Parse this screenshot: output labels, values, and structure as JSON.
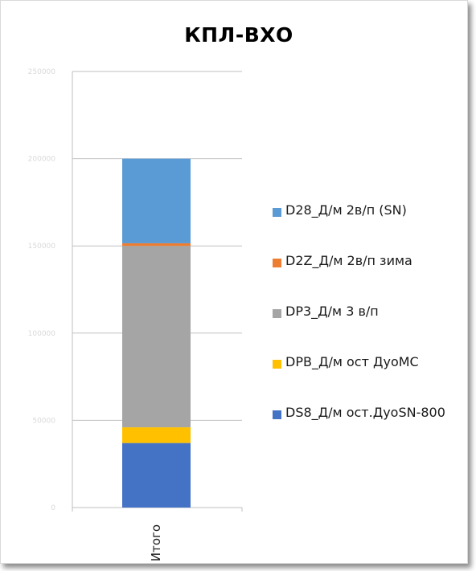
{
  "chart_data": {
    "type": "bar",
    "stacked": true,
    "title": "КПЛ-ВХО",
    "categories": [
      "Итого"
    ],
    "ylim": [
      0,
      250000
    ],
    "yticks": [
      0,
      50000,
      100000,
      150000,
      200000,
      250000
    ],
    "ytick_labels": [
      "0",
      "50000",
      "100000",
      "150000",
      "200000",
      "250000"
    ],
    "grid": true,
    "legend_position": "right",
    "series": [
      {
        "name": "DS8_Д/м ост.ДуоSN-800",
        "values": [
          37000
        ],
        "color": "#4472C4"
      },
      {
        "name": "DPB_Д/м ост ДуоМС",
        "values": [
          9000
        ],
        "color": "#FFC000"
      },
      {
        "name": "DP3_Д/м 3 в/п",
        "values": [
          104000
        ],
        "color": "#A5A5A5"
      },
      {
        "name": "D2Z_Д/м 2в/п зима",
        "values": [
          1500
        ],
        "color": "#ED7D31"
      },
      {
        "name": "D28_Д/м 2в/п (SN)",
        "values": [
          48500
        ],
        "color": "#5B9BD5"
      }
    ]
  }
}
